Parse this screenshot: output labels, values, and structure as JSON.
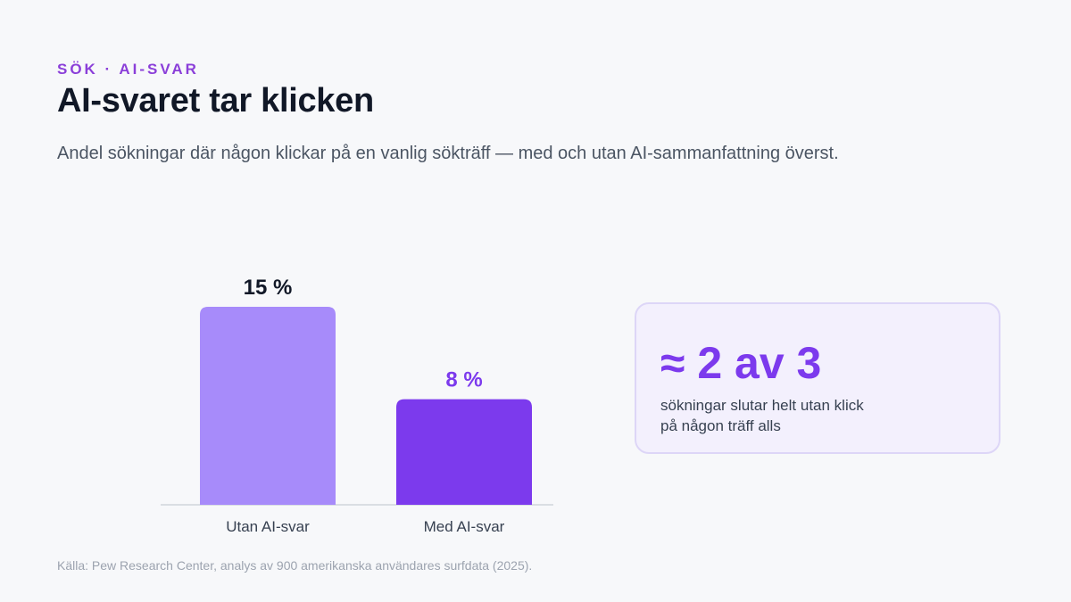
{
  "header": {
    "eyebrow": "SÖK · AI-SVAR",
    "title": "AI-svaret tar klicken",
    "subtitle": "Andel sökningar där någon klickar på en vanlig sökträff — med och utan AI-sammanfattning överst."
  },
  "chart_data": {
    "type": "bar",
    "categories": [
      "Utan AI-svar",
      "Med AI-svar"
    ],
    "values": [
      15,
      8
    ],
    "value_labels": [
      "15 %",
      "8 %"
    ],
    "unit": "%",
    "ylim": [
      0,
      15
    ],
    "grid": false,
    "colors": [
      "#a78bfa",
      "#7c3aed"
    ],
    "value_label_colors": [
      "#111827",
      "#7c3aed"
    ]
  },
  "callout": {
    "big": "≈ 2 av 3",
    "text": "sökningar slutar helt utan klick på någon träff alls"
  },
  "source": "Källa: Pew Research Center, analys av 900 amerikanska användares surfdata (2025)."
}
